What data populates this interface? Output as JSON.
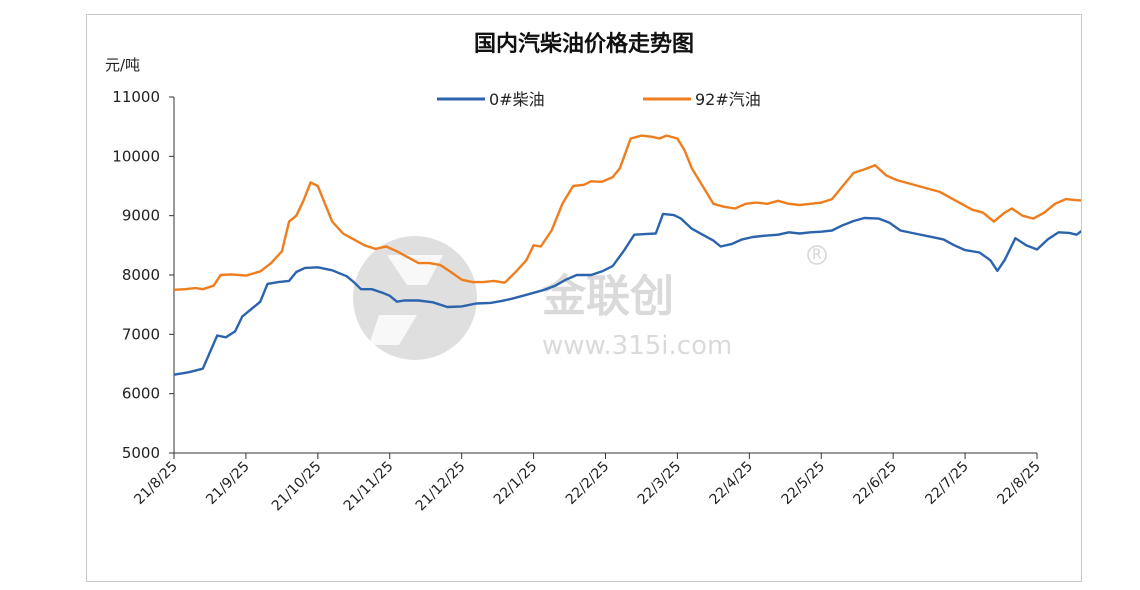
{
  "chart_data": {
    "type": "line",
    "title": "国内汽柴油价格走势图",
    "ylabel": "元/吨",
    "ylim": [
      5000,
      11000
    ],
    "yticks": [
      5000,
      6000,
      7000,
      8000,
      9000,
      10000,
      11000
    ],
    "x_tick_labels": [
      "21/8/25",
      "21/9/25",
      "21/10/25",
      "21/11/25",
      "21/12/25",
      "22/1/25",
      "22/2/25",
      "22/3/25",
      "22/4/25",
      "22/5/25",
      "22/6/25",
      "22/7/25",
      "22/8/25"
    ],
    "legend_position": "top-center",
    "grid": false,
    "watermark": {
      "brand": "金联创",
      "registered": "R",
      "url": "www.315i.com"
    },
    "series": [
      {
        "name": "0#柴油",
        "color": "#2b64ad",
        "points": [
          [
            0,
            6320
          ],
          [
            0.2,
            6360
          ],
          [
            0.4,
            6420
          ],
          [
            0.5,
            6700
          ],
          [
            0.6,
            6980
          ],
          [
            0.72,
            6950
          ],
          [
            0.85,
            7050
          ],
          [
            0.95,
            7300
          ],
          [
            1.05,
            7400
          ],
          [
            1.2,
            7550
          ],
          [
            1.3,
            7850
          ],
          [
            1.45,
            7880
          ],
          [
            1.6,
            7900
          ],
          [
            1.7,
            8050
          ],
          [
            1.82,
            8120
          ],
          [
            2.0,
            8130
          ],
          [
            2.2,
            8080
          ],
          [
            2.4,
            7980
          ],
          [
            2.5,
            7880
          ],
          [
            2.6,
            7760
          ],
          [
            2.75,
            7760
          ],
          [
            2.9,
            7700
          ],
          [
            3.0,
            7650
          ],
          [
            3.1,
            7550
          ],
          [
            3.2,
            7570
          ],
          [
            3.4,
            7570
          ],
          [
            3.6,
            7540
          ],
          [
            3.8,
            7460
          ],
          [
            4.0,
            7470
          ],
          [
            4.2,
            7520
          ],
          [
            4.4,
            7530
          ],
          [
            4.55,
            7560
          ],
          [
            4.7,
            7600
          ],
          [
            4.85,
            7650
          ],
          [
            5.0,
            7700
          ],
          [
            5.15,
            7750
          ],
          [
            5.3,
            7820
          ],
          [
            5.45,
            7920
          ],
          [
            5.6,
            8000
          ],
          [
            5.8,
            8000
          ],
          [
            5.95,
            8060
          ],
          [
            6.1,
            8150
          ],
          [
            6.25,
            8400
          ],
          [
            6.4,
            8680
          ],
          [
            6.55,
            8690
          ],
          [
            6.7,
            8700
          ],
          [
            6.8,
            9030
          ],
          [
            6.95,
            9010
          ],
          [
            7.05,
            8950
          ],
          [
            7.2,
            8780
          ],
          [
            7.35,
            8680
          ],
          [
            7.5,
            8580
          ],
          [
            7.6,
            8480
          ],
          [
            7.75,
            8520
          ],
          [
            7.9,
            8600
          ],
          [
            8.05,
            8640
          ],
          [
            8.2,
            8660
          ],
          [
            8.4,
            8680
          ],
          [
            8.55,
            8720
          ],
          [
            8.7,
            8700
          ],
          [
            8.85,
            8720
          ],
          [
            9.0,
            8730
          ],
          [
            9.15,
            8750
          ],
          [
            9.3,
            8840
          ],
          [
            9.45,
            8910
          ],
          [
            9.6,
            8960
          ],
          [
            9.8,
            8950
          ],
          [
            9.95,
            8880
          ],
          [
            10.1,
            8750
          ],
          [
            10.3,
            8700
          ],
          [
            10.5,
            8650
          ],
          [
            10.7,
            8600
          ],
          [
            10.85,
            8500
          ],
          [
            11.0,
            8420
          ],
          [
            11.2,
            8380
          ],
          [
            11.35,
            8250
          ],
          [
            11.45,
            8070
          ],
          [
            11.55,
            8250
          ],
          [
            11.7,
            8620
          ],
          [
            11.85,
            8500
          ],
          [
            12.0,
            8430
          ],
          [
            12.15,
            8600
          ],
          [
            12.3,
            8720
          ],
          [
            12.45,
            8710
          ],
          [
            12.55,
            8680
          ],
          [
            12.65,
            8770
          ],
          [
            12.75,
            8720
          ],
          [
            12.85,
            8800
          ],
          [
            12.95,
            8830
          ],
          [
            13.0,
            8840
          ]
        ]
      },
      {
        "name": "92#汽油",
        "color": "#ee7d1e",
        "points": [
          [
            0,
            7750
          ],
          [
            0.15,
            7760
          ],
          [
            0.3,
            7780
          ],
          [
            0.4,
            7760
          ],
          [
            0.55,
            7820
          ],
          [
            0.65,
            8000
          ],
          [
            0.8,
            8010
          ],
          [
            1.0,
            7990
          ],
          [
            1.2,
            8060
          ],
          [
            1.35,
            8200
          ],
          [
            1.5,
            8400
          ],
          [
            1.6,
            8900
          ],
          [
            1.7,
            9000
          ],
          [
            1.8,
            9250
          ],
          [
            1.9,
            9560
          ],
          [
            2.0,
            9500
          ],
          [
            2.1,
            9200
          ],
          [
            2.2,
            8900
          ],
          [
            2.35,
            8700
          ],
          [
            2.5,
            8600
          ],
          [
            2.65,
            8500
          ],
          [
            2.8,
            8440
          ],
          [
            2.95,
            8480
          ],
          [
            3.1,
            8400
          ],
          [
            3.25,
            8300
          ],
          [
            3.4,
            8200
          ],
          [
            3.55,
            8200
          ],
          [
            3.7,
            8170
          ],
          [
            3.85,
            8050
          ],
          [
            4.0,
            7920
          ],
          [
            4.15,
            7880
          ],
          [
            4.3,
            7880
          ],
          [
            4.45,
            7900
          ],
          [
            4.6,
            7870
          ],
          [
            4.75,
            8050
          ],
          [
            4.9,
            8250
          ],
          [
            5.0,
            8500
          ],
          [
            5.1,
            8480
          ],
          [
            5.25,
            8750
          ],
          [
            5.4,
            9200
          ],
          [
            5.55,
            9500
          ],
          [
            5.7,
            9520
          ],
          [
            5.8,
            9580
          ],
          [
            5.95,
            9570
          ],
          [
            6.1,
            9650
          ],
          [
            6.2,
            9800
          ],
          [
            6.35,
            10300
          ],
          [
            6.5,
            10350
          ],
          [
            6.65,
            10330
          ],
          [
            6.75,
            10300
          ],
          [
            6.85,
            10350
          ],
          [
            7.0,
            10300
          ],
          [
            7.1,
            10100
          ],
          [
            7.2,
            9800
          ],
          [
            7.35,
            9500
          ],
          [
            7.5,
            9200
          ],
          [
            7.65,
            9150
          ],
          [
            7.8,
            9120
          ],
          [
            7.95,
            9200
          ],
          [
            8.1,
            9220
          ],
          [
            8.25,
            9200
          ],
          [
            8.4,
            9250
          ],
          [
            8.55,
            9200
          ],
          [
            8.7,
            9180
          ],
          [
            8.85,
            9200
          ],
          [
            9.0,
            9220
          ],
          [
            9.15,
            9280
          ],
          [
            9.3,
            9500
          ],
          [
            9.45,
            9720
          ],
          [
            9.6,
            9780
          ],
          [
            9.75,
            9850
          ],
          [
            9.9,
            9680
          ],
          [
            10.05,
            9600
          ],
          [
            10.2,
            9550
          ],
          [
            10.35,
            9500
          ],
          [
            10.5,
            9450
          ],
          [
            10.65,
            9400
          ],
          [
            10.8,
            9300
          ],
          [
            10.95,
            9200
          ],
          [
            11.1,
            9100
          ],
          [
            11.25,
            9050
          ],
          [
            11.4,
            8900
          ],
          [
            11.55,
            9050
          ],
          [
            11.65,
            9120
          ],
          [
            11.8,
            9000
          ],
          [
            11.95,
            8950
          ],
          [
            12.1,
            9050
          ],
          [
            12.25,
            9200
          ],
          [
            12.4,
            9280
          ],
          [
            12.55,
            9260
          ],
          [
            12.7,
            9250
          ],
          [
            12.85,
            9280
          ],
          [
            13.0,
            9300
          ]
        ]
      }
    ]
  }
}
